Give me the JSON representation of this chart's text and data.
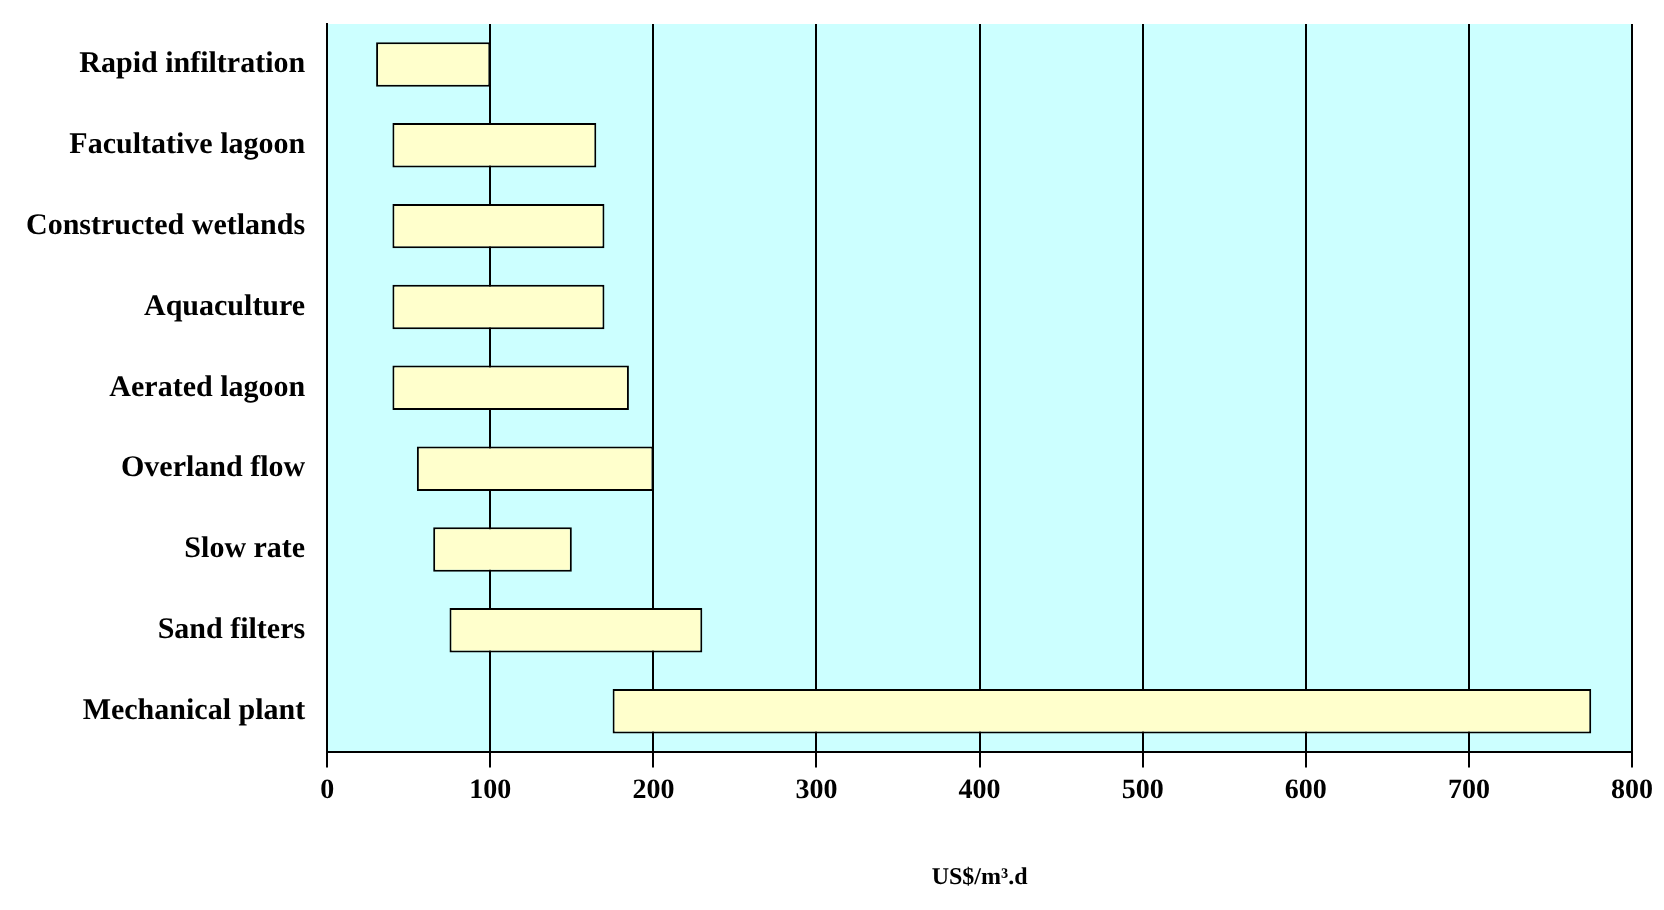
{
  "chart_data": {
    "type": "bar",
    "orientation": "horizontal",
    "xlabel": "US$/m³.d",
    "categories": [
      "Rapid infiltration",
      "Facultative lagoon",
      "Constructed wetlands",
      "Aquaculture",
      "Aerated lagoon",
      "Overland flow",
      "Slow rate",
      "Sand filters",
      "Mechanical plant"
    ],
    "base": [
      30,
      40,
      40,
      40,
      40,
      55,
      65,
      75,
      175
    ],
    "values": [
      70,
      125,
      130,
      130,
      145,
      145,
      85,
      155,
      600
    ],
    "color": "#ffffcc",
    "xlim": [
      0,
      800
    ],
    "xticks": [
      0,
      100,
      200,
      300,
      400,
      500,
      600,
      700,
      800
    ],
    "grid": "x",
    "legend": false
  }
}
